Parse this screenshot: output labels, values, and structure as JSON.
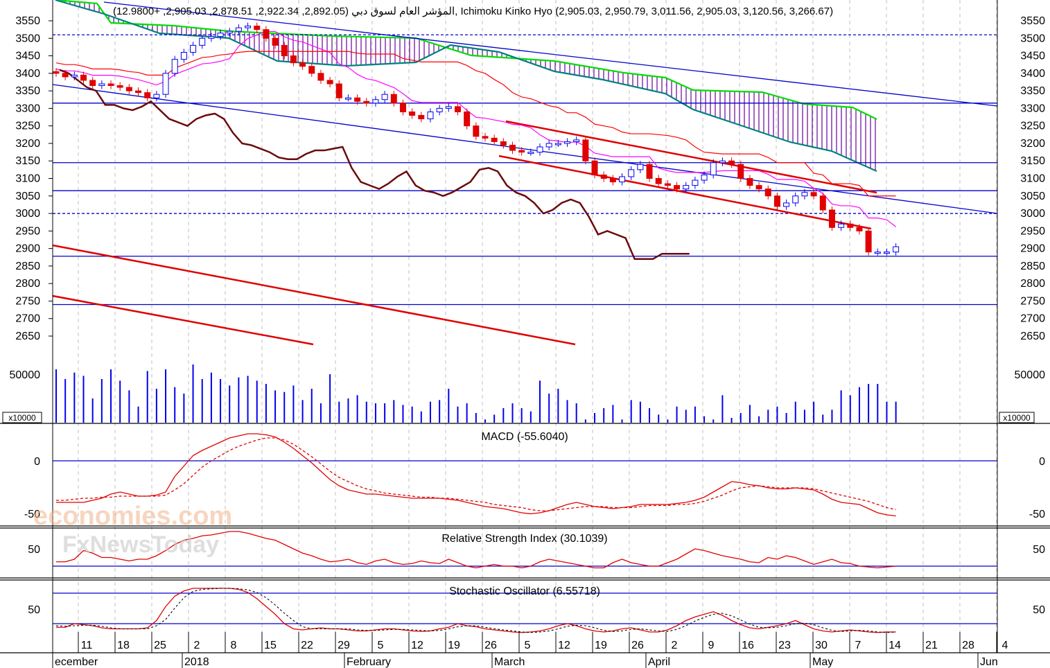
{
  "chart_data": {
    "type": "candlestick",
    "header": "المؤشر العام لسوق دبي (2,892.05, 2,922.34, 2,878.51, 2,905.03, +12.9800), Ichimoku Kinko Hyo (2,905.03, 2,950.79, 3,011.56, 2,905.03, 3,120.56, 3,266.67)",
    "price_axis": {
      "ticks": [
        "3550",
        "3500",
        "3450",
        "3400",
        "3350",
        "3300",
        "3250",
        "3200",
        "3150",
        "3100",
        "3050",
        "3000",
        "2950",
        "2900",
        "2850",
        "2800",
        "2750",
        "2700",
        "2650"
      ],
      "ylim": [
        2600,
        3580
      ]
    },
    "volume_axis": {
      "tick": "50000",
      "multiplier_label": "x10000"
    },
    "macd": {
      "title": "MACD (-55.6040)",
      "ticks": [
        "0",
        "-50"
      ]
    },
    "rsi": {
      "title": "Relative Strength Index (30.1039)",
      "ticks": [
        "50"
      ]
    },
    "stochastic": {
      "title": "Stochastic Oscillator (6.55718)",
      "ticks": [
        "50"
      ]
    },
    "x_day_labels": [
      "11",
      "18",
      "25",
      "2",
      "8",
      "15",
      "22",
      "29",
      "5",
      "12",
      "19",
      "26",
      "5",
      "12",
      "19",
      "26",
      "2",
      "9",
      "16",
      "23",
      "30",
      "7",
      "14",
      "21",
      "28",
      "4"
    ],
    "x_month_labels": [
      "ecember",
      "2018",
      "February",
      "March",
      "April",
      "May",
      "Jun"
    ],
    "horizontal_levels": [
      3510,
      3315,
      3145,
      3065,
      3000,
      2878,
      2740
    ],
    "close": [
      3400,
      3390,
      3395,
      3380,
      3365,
      3370,
      3365,
      3360,
      3350,
      3345,
      3330,
      3340,
      3400,
      3440,
      3460,
      3480,
      3500,
      3505,
      3515,
      3520,
      3530,
      3535,
      3525,
      3500,
      3480,
      3450,
      3430,
      3420,
      3400,
      3380,
      3370,
      3330,
      3330,
      3320,
      3315,
      3325,
      3340,
      3315,
      3290,
      3280,
      3270,
      3290,
      3300,
      3305,
      3290,
      3250,
      3220,
      3215,
      3205,
      3195,
      3180,
      3175,
      3175,
      3190,
      3200,
      3200,
      3205,
      3210,
      3150,
      3110,
      3100,
      3090,
      3105,
      3125,
      3140,
      3100,
      3085,
      3080,
      3070,
      3080,
      3095,
      3110,
      3145,
      3150,
      3140,
      3100,
      3080,
      3070,
      3050,
      3020,
      3030,
      3050,
      3060,
      3050,
      3010,
      2960,
      2970,
      2960,
      2950,
      2890,
      2890,
      2890,
      2905
    ],
    "volume": [
      330000,
      270000,
      310000,
      290000,
      150000,
      270000,
      330000,
      260000,
      200000,
      100000,
      320000,
      210000,
      330000,
      220000,
      180000,
      360000,
      270000,
      310000,
      270000,
      230000,
      280000,
      290000,
      260000,
      240000,
      200000,
      190000,
      230000,
      140000,
      210000,
      120000,
      300000,
      130000,
      150000,
      170000,
      130000,
      120000,
      120000,
      140000,
      110000,
      100000,
      70000,
      130000,
      140000,
      210000,
      100000,
      120000,
      60000,
      20000,
      50000,
      90000,
      120000,
      90000,
      70000,
      260000,
      180000,
      210000,
      140000,
      120000,
      20000,
      60000,
      90000,
      110000,
      20000,
      140000,
      130000,
      90000,
      50000,
      20000,
      100000,
      80000,
      100000,
      40000,
      20000,
      170000,
      30000,
      60000,
      110000,
      40000,
      80000,
      100000,
      60000,
      130000,
      80000,
      130000,
      50000,
      80000,
      200000,
      170000,
      220000,
      240000,
      240000,
      130000,
      130000
    ],
    "macd_line": [
      -40,
      -40,
      -40,
      -40,
      -38,
      -36,
      -32,
      -30,
      -32,
      -34,
      -34,
      -33,
      -30,
      -15,
      -5,
      5,
      10,
      14,
      18,
      22,
      24,
      26,
      26,
      25,
      23,
      18,
      12,
      5,
      -2,
      -10,
      -18,
      -24,
      -28,
      -30,
      -32,
      -32,
      -33,
      -34,
      -35,
      -36,
      -36,
      -36,
      -36,
      -37,
      -38,
      -40,
      -42,
      -44,
      -45,
      -46,
      -48,
      -50,
      -51,
      -50,
      -48,
      -45,
      -42,
      -40,
      -42,
      -44,
      -45,
      -46,
      -45,
      -44,
      -42,
      -42,
      -42,
      -42,
      -41,
      -40,
      -38,
      -35,
      -30,
      -25,
      -20,
      -21,
      -23,
      -24,
      -26,
      -27,
      -27,
      -26,
      -27,
      -28,
      -32,
      -37,
      -40,
      -41,
      -42,
      -46,
      -50,
      -52,
      -53
    ],
    "macd_signal": [
      -38,
      -38,
      -37,
      -36,
      -36,
      -35,
      -35,
      -34,
      -34,
      -34,
      -34,
      -34,
      -33,
      -28,
      -22,
      -14,
      -6,
      0,
      5,
      10,
      14,
      17,
      20,
      22,
      22,
      20,
      16,
      10,
      4,
      -3,
      -10,
      -16,
      -20,
      -24,
      -27,
      -29,
      -31,
      -32,
      -33,
      -34,
      -35,
      -35,
      -36,
      -36,
      -37,
      -38,
      -39,
      -40,
      -42,
      -43,
      -44,
      -45,
      -47,
      -48,
      -48,
      -47,
      -46,
      -45,
      -44,
      -44,
      -44,
      -45,
      -45,
      -45,
      -44,
      -43,
      -43,
      -43,
      -42,
      -42,
      -41,
      -39,
      -36,
      -33,
      -29,
      -26,
      -25,
      -24,
      -25,
      -26,
      -26,
      -26,
      -26,
      -27,
      -29,
      -31,
      -33,
      -35,
      -37,
      -39,
      -42,
      -45,
      -47
    ],
    "rsi_values": [
      35,
      35,
      38,
      48,
      45,
      40,
      40,
      38,
      36,
      38,
      38,
      42,
      48,
      55,
      60,
      62,
      65,
      66,
      68,
      70,
      70,
      68,
      65,
      62,
      60,
      55,
      50,
      45,
      42,
      38,
      35,
      36,
      38,
      34,
      32,
      36,
      38,
      34,
      32,
      33,
      36,
      34,
      33,
      38,
      34,
      30,
      28,
      30,
      32,
      30,
      30,
      28,
      30,
      35,
      38,
      36,
      34,
      32,
      30,
      28,
      28,
      34,
      38,
      34,
      32,
      30,
      30,
      34,
      38,
      44,
      50,
      48,
      45,
      42,
      40,
      38,
      35,
      34,
      40,
      38,
      42,
      40,
      36,
      32,
      35,
      38,
      34,
      33,
      30,
      29,
      28,
      29,
      30
    ],
    "stoch_k": [
      15,
      15,
      22,
      20,
      18,
      14,
      12,
      12,
      12,
      12,
      14,
      28,
      55,
      75,
      85,
      90,
      90,
      90,
      90,
      90,
      88,
      82,
      70,
      55,
      40,
      22,
      12,
      10,
      12,
      14,
      12,
      12,
      10,
      8,
      8,
      10,
      12,
      12,
      10,
      8,
      7,
      8,
      12,
      15,
      22,
      18,
      16,
      12,
      10,
      8,
      6,
      5,
      6,
      8,
      12,
      18,
      22,
      18,
      12,
      8,
      6,
      8,
      12,
      14,
      10,
      6,
      6,
      10,
      18,
      28,
      35,
      40,
      45,
      38,
      28,
      20,
      14,
      12,
      15,
      18,
      22,
      28,
      20,
      12,
      8,
      6,
      8,
      10,
      8,
      6,
      5,
      6,
      6
    ],
    "stoch_d": [
      18,
      17,
      18,
      19,
      19,
      17,
      14,
      12,
      12,
      12,
      12,
      18,
      30,
      52,
      72,
      84,
      88,
      89,
      90,
      90,
      89,
      87,
      82,
      72,
      58,
      42,
      28,
      16,
      12,
      12,
      12,
      12,
      12,
      10,
      9,
      9,
      10,
      11,
      11,
      10,
      9,
      8,
      9,
      12,
      16,
      18,
      18,
      15,
      12,
      10,
      8,
      6,
      5,
      6,
      8,
      12,
      17,
      19,
      18,
      14,
      9,
      7,
      8,
      11,
      12,
      10,
      8,
      7,
      11,
      18,
      27,
      34,
      40,
      42,
      37,
      29,
      21,
      15,
      14,
      15,
      18,
      22,
      23,
      20,
      14,
      9,
      7,
      8,
      9,
      8,
      6,
      5,
      6
    ]
  },
  "watermark": {
    "line1": "economies.com",
    "line2": "FxNewsToday"
  },
  "colors": {
    "up": "#0000ee",
    "down": "#e00000",
    "tenkan": "#ff00ff",
    "kijun": "#ff0000",
    "chikou": "#6b0a0a",
    "spanA": "#00dd00",
    "spanB": "#008080",
    "cloud": "#660099",
    "level": "#0000cc",
    "trend": "#e00000",
    "grid": "#bfbfbf"
  }
}
